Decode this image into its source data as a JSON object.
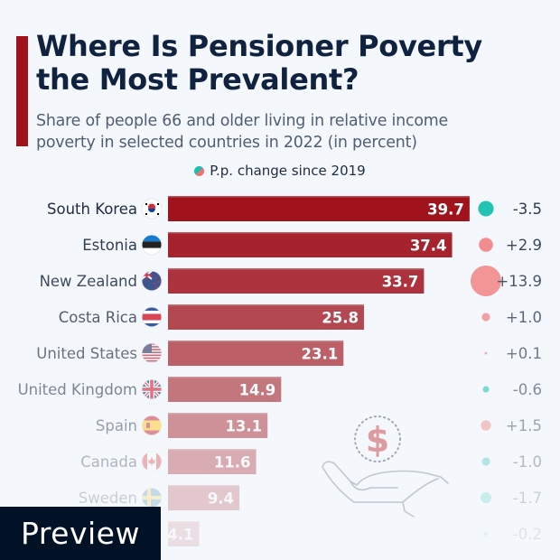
{
  "title_line1": "Where Is Pensioner Poverty",
  "title_line2": "the Most Prevalent?",
  "subtitle_line1": "Share of people 66 and older living in relative income",
  "subtitle_line2": "poverty in selected countries in 2022 (in percent)",
  "legend_label": "P.p. change since 2019",
  "preview_label": "Preview",
  "colors": {
    "bar": "#a0121c",
    "positive": "#f07070",
    "negative": "#14c0b0",
    "title": "#0f2240",
    "accent": "#a0121c"
  },
  "chart_data": {
    "type": "bar",
    "orientation": "horizontal",
    "title": "Where Is Pensioner Poverty the Most Prevalent?",
    "subtitle": "Share of people 66 and older living in relative income poverty in selected countries in 2022 (in percent)",
    "categories": [
      "South Korea",
      "Estonia",
      "New Zealand",
      "Costa Rica",
      "United States",
      "United Kingdom",
      "Spain",
      "Canada",
      "Sweden",
      ""
    ],
    "flags": [
      "flag-kr-icon",
      "flag-ee-icon",
      "flag-nz-icon",
      "flag-cr-icon",
      "flag-us-icon",
      "flag-gb-icon",
      "flag-es-icon",
      "flag-ca-icon",
      "flag-se-icon",
      ""
    ],
    "values": [
      39.7,
      37.4,
      33.7,
      25.8,
      23.1,
      14.9,
      13.1,
      11.6,
      9.4,
      4.1
    ],
    "value_labels": [
      "39.7",
      "37.4",
      "33.7",
      "25.8",
      "23.1",
      "14.9",
      "13.1",
      "11.6",
      "9.4",
      "4.1"
    ],
    "change": [
      -3.5,
      2.9,
      13.9,
      1.0,
      0.1,
      -0.6,
      1.5,
      -1.0,
      -1.7,
      -0.2
    ],
    "change_labels": [
      "-3.5",
      "+2.9",
      "+13.9",
      "+1.0",
      "+0.1",
      "-0.6",
      "+1.5",
      "-1.0",
      "-1.7",
      "-0.2"
    ],
    "legend": "P.p. change since 2019",
    "xlim": [
      0,
      40
    ],
    "grid": false
  }
}
